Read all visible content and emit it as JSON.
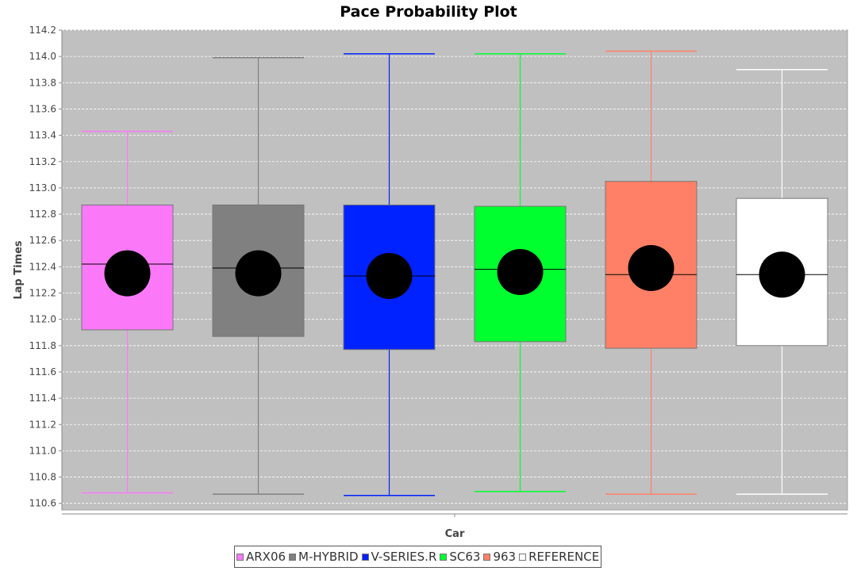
{
  "chart_data": {
    "type": "boxplot",
    "title": "Pace Probability Plot",
    "xlabel": "Car",
    "ylabel": "Lap Times",
    "ylim": [
      110.55,
      114.2
    ],
    "yticks": [
      "110.6",
      "110.8",
      "111.0",
      "111.2",
      "111.4",
      "111.6",
      "111.8",
      "112.0",
      "112.2",
      "112.4",
      "112.6",
      "112.8",
      "113.0",
      "113.2",
      "113.4",
      "113.6",
      "113.8",
      "114.0",
      "114.2"
    ],
    "grid": true,
    "legend_position": "bottom",
    "colors": {
      "plot_background": "#c0c0c0",
      "gridline": "#ffffff",
      "mean_marker": "#000000"
    },
    "series": [
      {
        "name": "ARX06",
        "color": "#fb79f9",
        "min": 110.68,
        "q1": 111.92,
        "median": 112.42,
        "q3": 112.87,
        "max": 113.43,
        "mean": 112.35
      },
      {
        "name": "M-HYBRID",
        "color": "#808080",
        "min": 110.67,
        "q1": 111.87,
        "median": 112.39,
        "q3": 112.87,
        "max": 113.99,
        "mean": 112.35
      },
      {
        "name": "V-SERIES.R",
        "color": "#0022ff",
        "min": 110.66,
        "q1": 111.77,
        "median": 112.33,
        "q3": 112.87,
        "max": 114.02,
        "mean": 112.33
      },
      {
        "name": "SC63",
        "color": "#00ff2f",
        "min": 110.69,
        "q1": 111.83,
        "median": 112.38,
        "q3": 112.86,
        "max": 114.02,
        "mean": 112.36
      },
      {
        "name": "963",
        "color": "#ff8066",
        "min": 110.67,
        "q1": 111.78,
        "median": 112.34,
        "q3": 113.05,
        "max": 114.04,
        "mean": 112.39
      },
      {
        "name": "REFERENCE",
        "color": "#ffffff",
        "min": 110.67,
        "q1": 111.8,
        "median": 112.34,
        "q3": 112.92,
        "max": 113.9,
        "mean": 112.34
      }
    ]
  }
}
